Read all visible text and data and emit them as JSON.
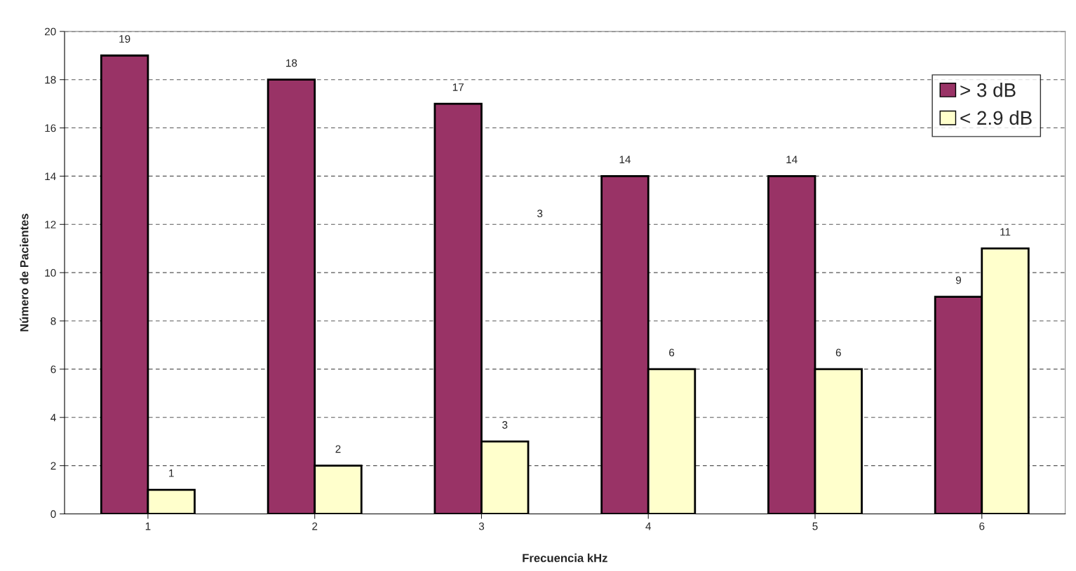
{
  "chart_data": {
    "type": "bar",
    "xlabel": "Frecuencia kHz",
    "ylabel": "Número de Pacientes",
    "categories": [
      "1",
      "2",
      "3",
      "4",
      "5",
      "6"
    ],
    "series": [
      {
        "name": "> 3 dB",
        "color": "#993366",
        "values": [
          19,
          18,
          17,
          14,
          14,
          9
        ]
      },
      {
        "name": "< 2.9 dB",
        "color": "#ffffcc",
        "values": [
          1,
          2,
          3,
          6,
          6,
          11
        ]
      }
    ],
    "ylim": [
      0,
      20
    ],
    "yticks": [
      0,
      2,
      4,
      6,
      8,
      10,
      12,
      14,
      16,
      18,
      20
    ],
    "grid": "y",
    "legend": "top right",
    "data_labels": true,
    "annotations": [
      "3"
    ]
  }
}
